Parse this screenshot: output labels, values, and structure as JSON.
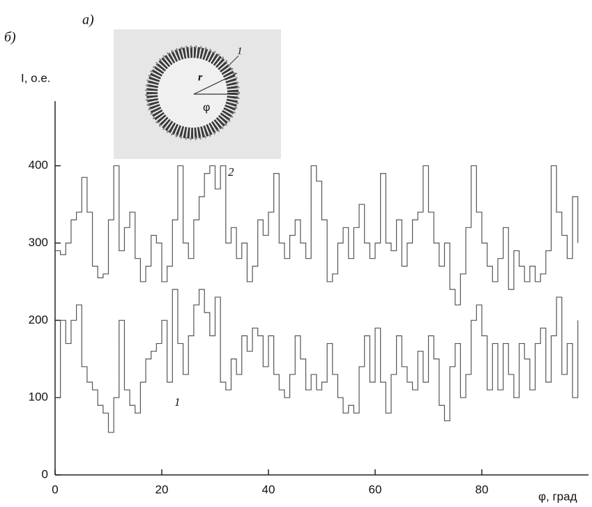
{
  "chart_data": {
    "type": "line",
    "panel_labels": [
      "а)",
      "б)"
    ],
    "inset_labels": [
      "1",
      "r",
      "φ"
    ],
    "ylabel": "I, о.е.",
    "xlabel": "φ, град",
    "x": [
      0,
      1,
      2,
      3,
      4,
      5,
      6,
      7,
      8,
      9,
      10,
      11,
      12,
      13,
      14,
      15,
      16,
      17,
      18,
      19,
      20,
      21,
      22,
      23,
      24,
      25,
      26,
      27,
      28,
      29,
      30,
      31,
      32,
      33,
      34,
      35,
      36,
      37,
      38,
      39,
      40,
      41,
      42,
      43,
      44,
      45,
      46,
      47,
      48,
      49,
      50,
      51,
      52,
      53,
      54,
      55,
      56,
      57,
      58,
      59,
      60,
      61,
      62,
      63,
      64,
      65,
      66,
      67,
      68,
      69,
      70,
      71,
      72,
      73,
      74,
      75,
      76,
      77,
      78,
      79,
      80,
      81,
      82,
      83,
      84,
      85,
      86,
      87,
      88,
      89,
      90,
      91,
      92,
      93,
      94,
      95,
      96,
      97,
      98
    ],
    "series": [
      {
        "name": "2",
        "color": "#555555",
        "values": [
          290,
          285,
          300,
          330,
          340,
          385,
          340,
          270,
          255,
          260,
          330,
          400,
          290,
          320,
          340,
          280,
          250,
          270,
          310,
          300,
          250,
          270,
          330,
          400,
          300,
          280,
          330,
          360,
          390,
          400,
          370,
          400,
          300,
          320,
          280,
          300,
          250,
          270,
          330,
          310,
          340,
          390,
          300,
          280,
          310,
          330,
          300,
          280,
          400,
          380,
          330,
          250,
          260,
          300,
          320,
          280,
          320,
          350,
          300,
          280,
          300,
          390,
          300,
          290,
          330,
          270,
          300,
          330,
          340,
          400,
          340,
          300,
          270,
          300,
          240,
          220,
          260,
          320,
          400,
          340,
          300,
          270,
          250,
          280,
          320,
          240,
          290,
          270,
          250,
          270,
          250,
          260,
          290,
          400,
          340,
          310,
          280,
          360,
          300
        ]
      },
      {
        "name": "1",
        "color": "#555555",
        "values": [
          100,
          200,
          170,
          200,
          220,
          140,
          120,
          110,
          90,
          80,
          55,
          100,
          200,
          110,
          90,
          80,
          120,
          150,
          160,
          170,
          200,
          120,
          240,
          170,
          130,
          180,
          220,
          240,
          210,
          180,
          230,
          120,
          110,
          150,
          130,
          180,
          160,
          190,
          180,
          140,
          180,
          130,
          110,
          100,
          130,
          180,
          150,
          110,
          130,
          110,
          120,
          170,
          130,
          100,
          80,
          90,
          80,
          140,
          180,
          120,
          190,
          120,
          80,
          130,
          180,
          140,
          120,
          110,
          160,
          120,
          180,
          150,
          90,
          70,
          140,
          170,
          100,
          130,
          200,
          220,
          180,
          110,
          170,
          110,
          170,
          130,
          100,
          170,
          150,
          110,
          170,
          190,
          120,
          180,
          230,
          130,
          170,
          100,
          200
        ]
      }
    ],
    "xlim": [
      0,
      100
    ],
    "ylim": [
      0,
      480
    ],
    "xticks": [
      0,
      20,
      40,
      60,
      80
    ],
    "yticks": [
      0,
      100,
      200,
      300,
      400
    ]
  }
}
